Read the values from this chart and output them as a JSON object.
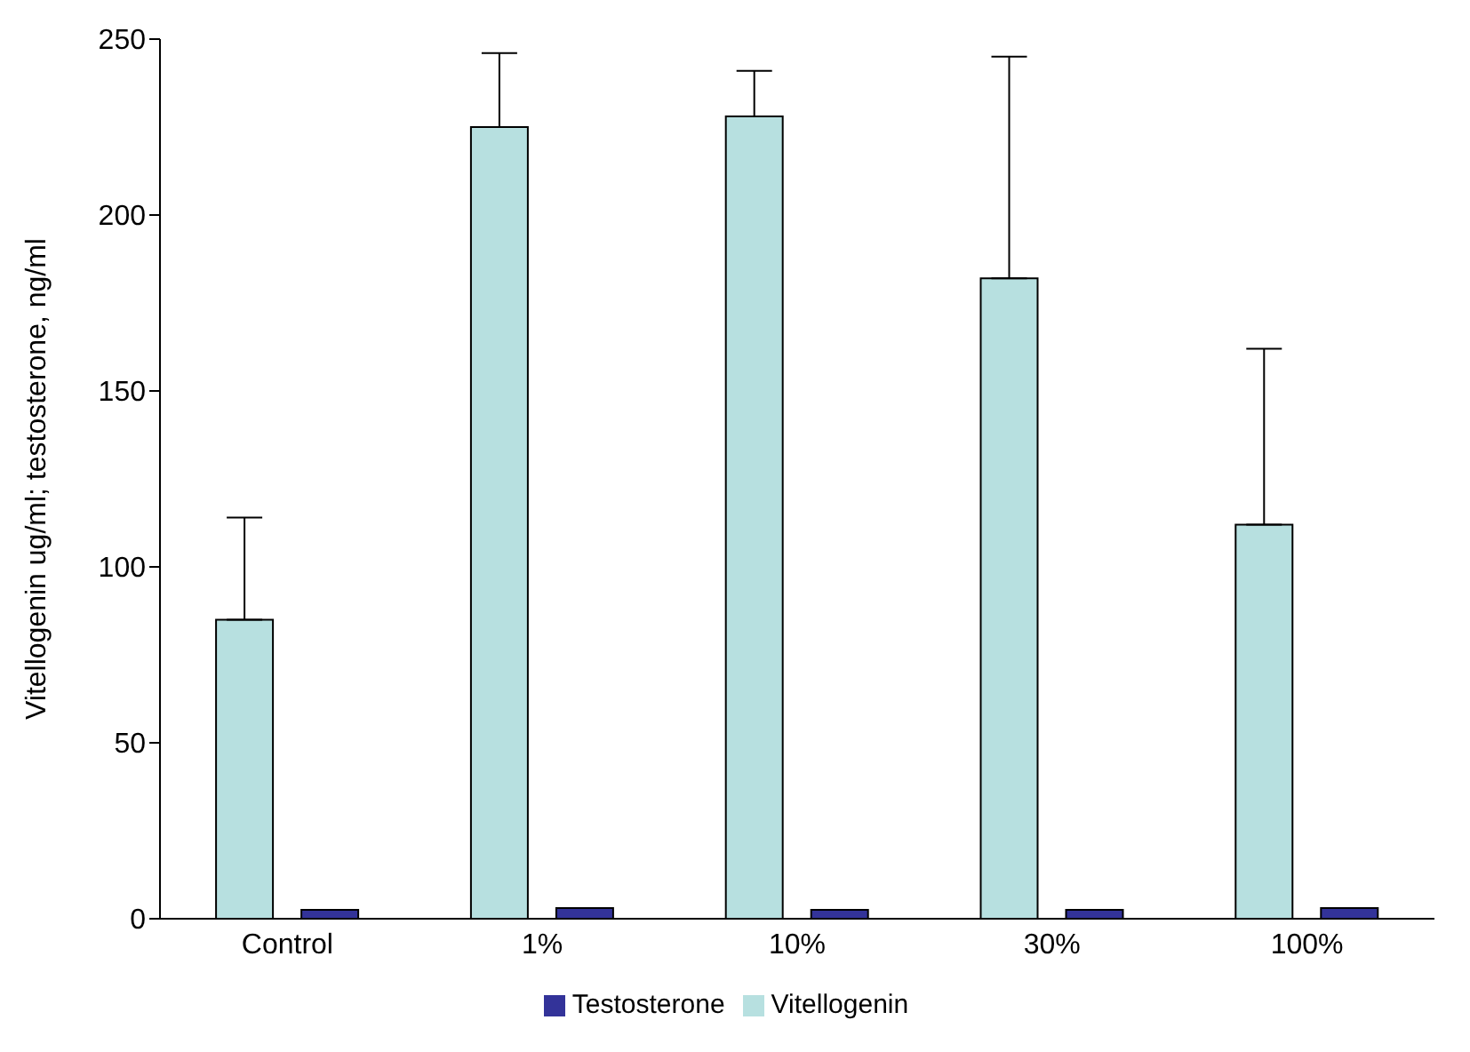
{
  "chart_data": {
    "type": "bar",
    "ylabel": "Vitellogenin ug/ml; testosterone, ng/ml",
    "categories": [
      "Control",
      "1%",
      "10%",
      "30%",
      "100%"
    ],
    "series": [
      {
        "name": "Vitellogenin",
        "color": "#b7e0e0",
        "values": [
          85,
          225,
          228,
          182,
          112
        ],
        "errors": [
          [
            85,
            114
          ],
          [
            225,
            246
          ],
          [
            228,
            241
          ],
          [
            182,
            245
          ],
          [
            112,
            162
          ]
        ]
      },
      {
        "name": "Testosterone",
        "color": "#333399",
        "values": [
          2.5,
          3,
          2.5,
          2.5,
          3
        ]
      }
    ],
    "ylim": [
      0,
      250
    ],
    "yticks": [
      0,
      50,
      100,
      150,
      200,
      250
    ],
    "grid": false,
    "legend": "bottom"
  }
}
